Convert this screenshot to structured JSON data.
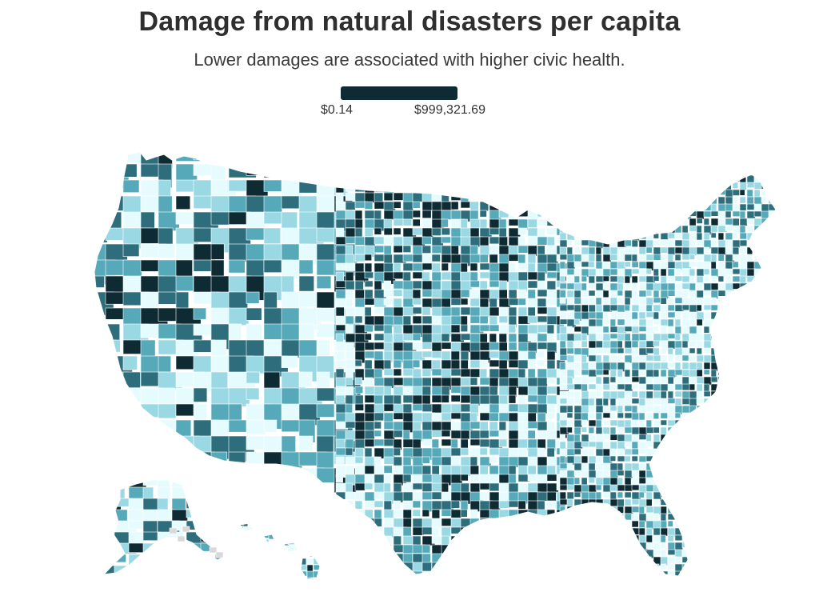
{
  "title": "Damage from natural disasters per capita",
  "subtitle": "Lower damages are associated with higher civic health.",
  "legend": {
    "min_label": "$0.14",
    "max_label": "$999,321.69",
    "min_value": 0.14,
    "max_value": 999321.69,
    "color_low": "#e6fbfd",
    "color_high": "#0e2a33"
  },
  "palette": [
    "#e6fbfd",
    "#9ad8e3",
    "#55a9b8",
    "#2e6e7c",
    "#0e2a33"
  ],
  "no_data_color": "#d9d9d9",
  "map": {
    "regions": [
      "contiguous-us",
      "alaska",
      "hawaii"
    ]
  }
}
